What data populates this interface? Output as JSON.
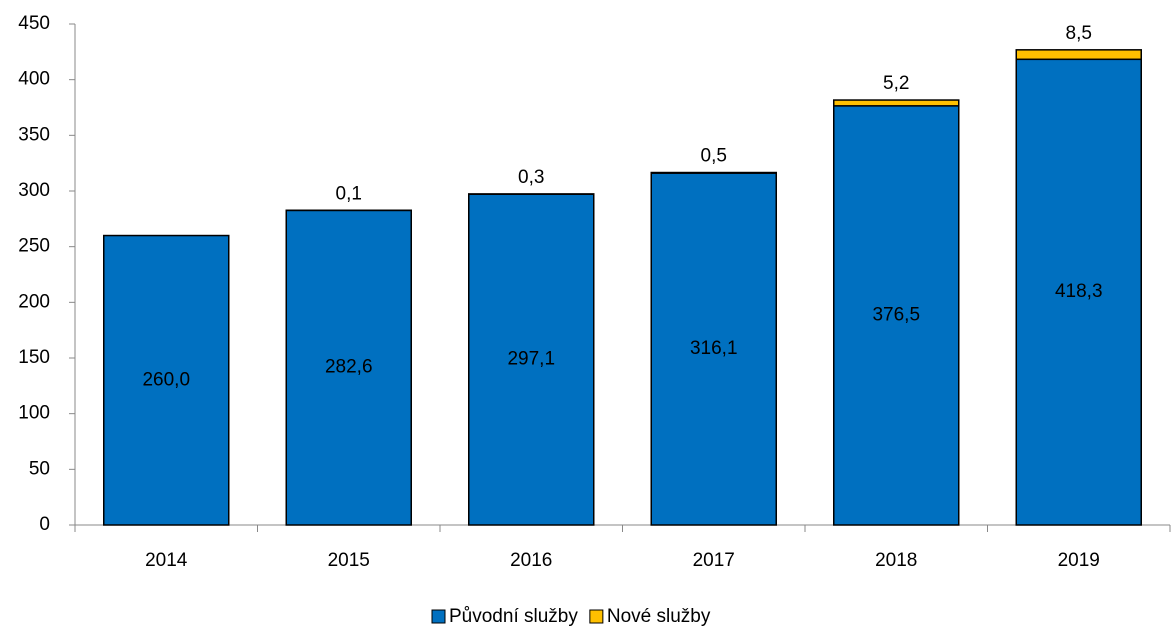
{
  "chart_data": {
    "type": "stacked_bar",
    "categories": [
      "2014",
      "2015",
      "2016",
      "2017",
      "2018",
      "2019"
    ],
    "series": [
      {
        "name": "Původní služby",
        "color": "#0070c0",
        "values": [
          260.0,
          282.6,
          297.1,
          316.1,
          376.5,
          418.3
        ],
        "value_labels": [
          "260,0",
          "282,6",
          "297,1",
          "316,1",
          "376,5",
          "418,3"
        ]
      },
      {
        "name": "Nové služby",
        "color": "#ffc000",
        "values": [
          null,
          0.1,
          0.3,
          0.5,
          5.2,
          8.5
        ],
        "value_labels": [
          null,
          "0,1",
          "0,3",
          "0,5",
          "5,2",
          "8,5"
        ]
      }
    ],
    "ylim": [
      0,
      450
    ],
    "yticks": [
      0,
      50,
      100,
      150,
      200,
      250,
      300,
      350,
      400,
      450
    ],
    "grid": false,
    "legend": "bottom"
  }
}
